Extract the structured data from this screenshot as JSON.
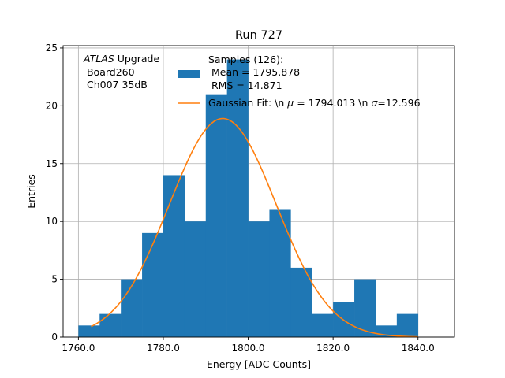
{
  "chart_data": {
    "type": "bar",
    "title": "Run 727",
    "xlabel": "Energy [ADC Counts]",
    "ylabel": "Entries",
    "xlim": [
      1756.4,
      1848.6
    ],
    "ylim": [
      0,
      25.2
    ],
    "xticks": [
      1760,
      1780,
      1800,
      1820,
      1840
    ],
    "xtick_labels": [
      "1760.0",
      "1780.0",
      "1800.0",
      "1820.0",
      "1840.0"
    ],
    "yticks": [
      0,
      5,
      10,
      15,
      20,
      25
    ],
    "ytick_labels": [
      "0",
      "5",
      "10",
      "15",
      "20",
      "25"
    ],
    "grid": true,
    "histogram": {
      "bin_edges": [
        1760,
        1765,
        1770,
        1775,
        1780,
        1785,
        1790,
        1795,
        1800,
        1805,
        1810,
        1815,
        1820,
        1825,
        1830,
        1835,
        1840
      ],
      "counts": [
        1,
        2,
        5,
        9,
        14,
        10,
        21,
        24,
        10,
        11,
        6,
        2,
        3,
        5,
        1,
        2
      ],
      "color": "#1f77b4"
    },
    "gaussian_fit": {
      "mu": 1794.013,
      "sigma": 12.596,
      "amplitude": 18.9,
      "x_range": [
        1763,
        1840
      ],
      "color": "#ff7f0e"
    },
    "annotation": {
      "line1_italic": "ATLAS",
      "line1_rest": " Upgrade",
      "line2": " Board260",
      "line3": " Ch007 35dB"
    },
    "legend": {
      "placement": "top-right",
      "entries": [
        {
          "kind": "patch",
          "lines": [
            "Samples (126):",
            " Mean = 1795.878",
            " RMS = 14.871"
          ]
        },
        {
          "kind": "line",
          "prefix": "Gaussian Fit: \\n ",
          "mu_symbol": "μ",
          "middle": " = 1794.013 \\n ",
          "sigma_symbol": "σ",
          "suffix": "=12.596"
        }
      ]
    }
  }
}
